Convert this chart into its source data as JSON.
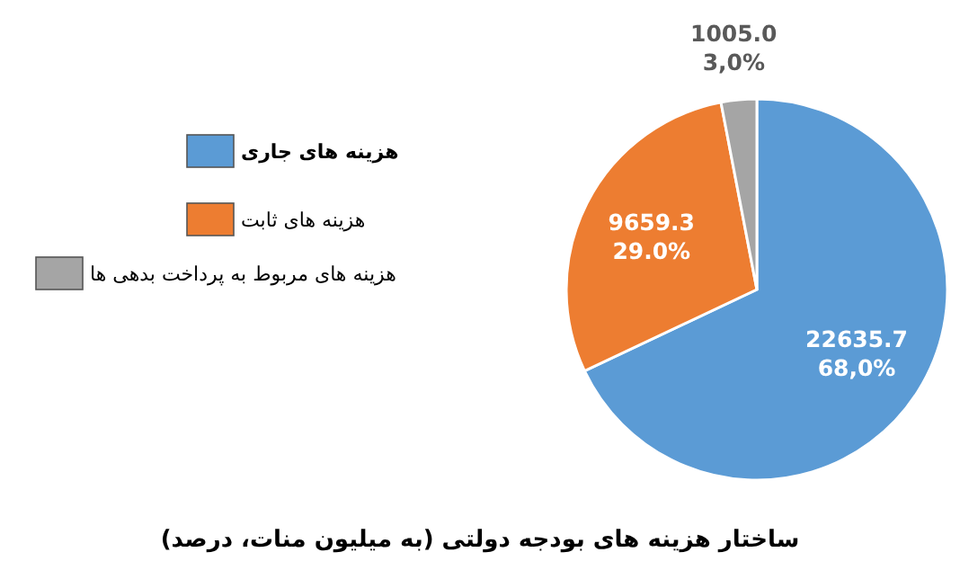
{
  "chart_data": {
    "type": "pie",
    "title": "ساختار هزینه های بودجه دولتی (به میلیون منات، درصد)",
    "categories": [
      "هزینه های جاری",
      "هزینه های ثابت",
      "هزینه های مربوط به پرداخت بدهی ها"
    ],
    "values": [
      22635.7,
      9659.3,
      1005.0
    ],
    "colors": [
      "#5b9bd5",
      "#ed7d31",
      "#a5a5a5"
    ],
    "value_labels": [
      "22635.7\n68,0%",
      "9659.3\n29.0%",
      "1005.0\n3,0%"
    ],
    "legend": "left"
  }
}
